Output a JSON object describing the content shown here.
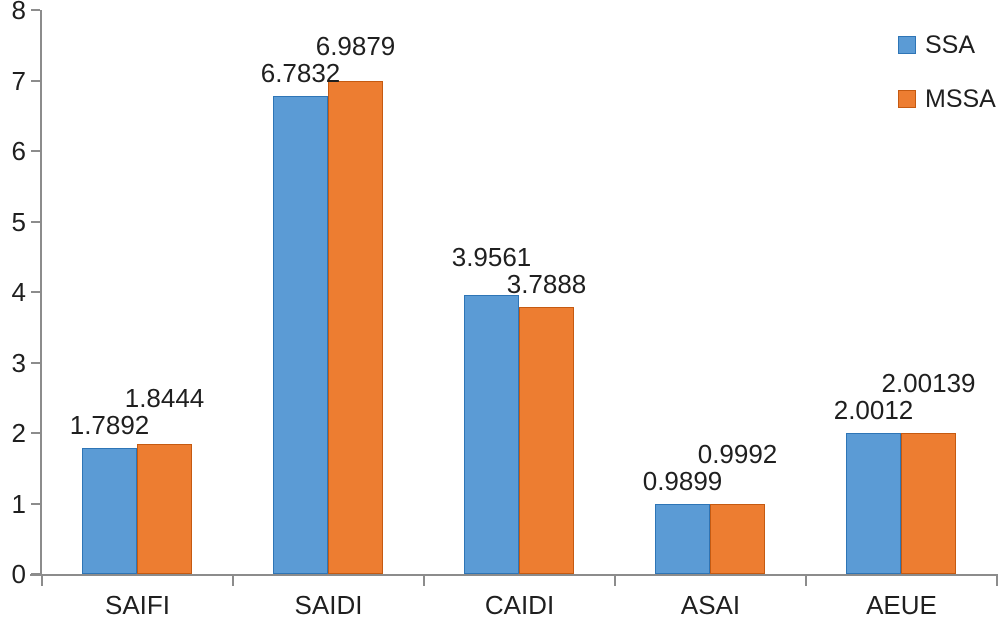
{
  "chart_data": {
    "type": "bar",
    "title": "",
    "xlabel": "",
    "ylabel": "",
    "categories": [
      "SAIFI",
      "SAIDI",
      "CAIDI",
      "ASAI",
      "AEUE"
    ],
    "series": [
      {
        "name": "SSA",
        "color": "#5B9BD5",
        "border_color": "#2E75B6",
        "values": [
          1.7892,
          6.7832,
          3.9561,
          0.9899,
          2.0012
        ],
        "value_labels": [
          "1.7892",
          "6.7832",
          "3.9561",
          "0.9899",
          "2.0012"
        ]
      },
      {
        "name": "MSSA",
        "color": "#ED7D31",
        "border_color": "#C55A11",
        "values": [
          1.8444,
          6.9879,
          3.7888,
          0.9992,
          2.00139
        ],
        "value_labels": [
          "1.8444",
          "6.9879",
          "3.7888",
          "0.9992",
          "2.00139"
        ]
      }
    ],
    "ylim": [
      0,
      8
    ],
    "yticks": [
      0,
      1,
      2,
      3,
      4,
      5,
      6,
      7,
      8
    ],
    "grid": false,
    "legend_position": "top-right",
    "axis_color": "#8C8C8C",
    "text_color": "#1f1f1f"
  }
}
